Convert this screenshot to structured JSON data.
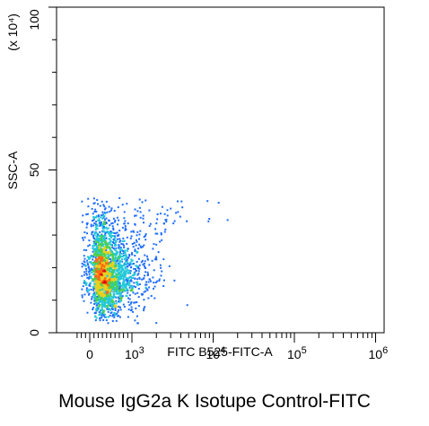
{
  "chart_data": {
    "type": "scatter",
    "title": "Mouse IgG2a K Isotupe Control-FITC",
    "xlabel": "FITC B525-FITC-A",
    "ylabel": "SSC-A",
    "ylabel_multiplier": "(x 10⁴)",
    "x_scale": "biexponential",
    "x_ticks": [
      {
        "value": 0,
        "label": "0",
        "sup": ""
      },
      {
        "value": 1000,
        "label": "10",
        "sup": "3"
      },
      {
        "value": 10000,
        "label": "10",
        "sup": "4"
      },
      {
        "value": 100000,
        "label": "10",
        "sup": "5"
      },
      {
        "value": 1000000,
        "label": "10",
        "sup": "6"
      }
    ],
    "y_ticks": [
      {
        "value": 0,
        "label": "0"
      },
      {
        "value": 50,
        "label": "50"
      },
      {
        "value": 100,
        "label": "100"
      }
    ],
    "xlim": [
      -300,
      1000000
    ],
    "ylim": [
      0,
      100
    ],
    "grid": false,
    "density_colormap": [
      "#1010b0",
      "#1e6cff",
      "#22c8d8",
      "#4ad050",
      "#e8d020",
      "#ff6a10",
      "#d81010"
    ],
    "population_clusters": [
      {
        "x_center": 400,
        "x_spread_decades": 0.28,
        "y_center": 18,
        "y_spread": 6,
        "count": 2200
      },
      {
        "x_center": 350,
        "x_spread_decades": 0.4,
        "y_center": 30,
        "y_spread": 6,
        "count": 300
      },
      {
        "x_center": 1800,
        "x_spread_decades": 0.35,
        "y_center": 37,
        "y_spread": 3,
        "count": 60
      }
    ]
  }
}
